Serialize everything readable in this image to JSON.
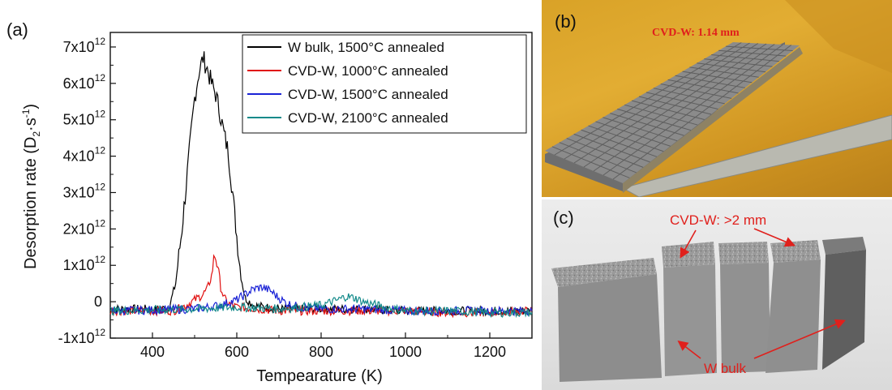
{
  "chart_data": {
    "type": "line",
    "panel_label": "(a)",
    "xlabel": "Tempearature (K)",
    "ylabel": "Desorption rate (D",
    "ylabel_sub": "2",
    "ylabel_unit": "·s",
    "ylabel_sup": "-1",
    "ylabel_close": ")",
    "xlim": [
      300,
      1300
    ],
    "ylim": [
      -1.0,
      7.4
    ],
    "y_scale": "×10^12",
    "x_ticks": [
      400,
      600,
      800,
      1000,
      1200
    ],
    "y_ticks": [
      {
        "value": -1,
        "mantissa": "-1x10",
        "exp": "12"
      },
      {
        "value": 0,
        "mantissa": "0",
        "exp": ""
      },
      {
        "value": 1,
        "mantissa": "1x10",
        "exp": "12"
      },
      {
        "value": 2,
        "mantissa": "2x10",
        "exp": "12"
      },
      {
        "value": 3,
        "mantissa": "3x10",
        "exp": "12"
      },
      {
        "value": 4,
        "mantissa": "4x10",
        "exp": "12"
      },
      {
        "value": 5,
        "mantissa": "5x10",
        "exp": "12"
      },
      {
        "value": 6,
        "mantissa": "6x10",
        "exp": "12"
      },
      {
        "value": 7,
        "mantissa": "7x10",
        "exp": "12"
      }
    ],
    "legend_position": "top-right",
    "grid": false,
    "series": [
      {
        "name": "W bulk, 1500°C annealed",
        "color": "#000000",
        "x": [
          300,
          420,
          440,
          455,
          470,
          485,
          500,
          510,
          520,
          530,
          540,
          550,
          560,
          570,
          580,
          590,
          600,
          610,
          620,
          640,
          700,
          800,
          900,
          1000,
          1100,
          1200,
          1300
        ],
        "y": [
          -0.2,
          -0.2,
          -0.15,
          0.5,
          2.0,
          3.8,
          5.6,
          6.3,
          6.7,
          6.4,
          6.0,
          5.7,
          5.2,
          4.6,
          4.1,
          3.0,
          1.8,
          0.7,
          0.1,
          -0.1,
          -0.2,
          -0.2,
          -0.2,
          -0.25,
          -0.25,
          -0.25,
          -0.25
        ]
      },
      {
        "name": "CVD-W, 1000°C annealed",
        "color": "#e01010",
        "x": [
          300,
          450,
          480,
          500,
          520,
          530,
          540,
          548,
          555,
          562,
          570,
          580,
          600,
          650,
          700,
          800,
          900,
          1000,
          1100,
          1200,
          1300
        ],
        "y": [
          -0.25,
          -0.25,
          -0.1,
          0.05,
          0.2,
          0.35,
          0.7,
          1.3,
          1.0,
          0.4,
          0.1,
          -0.05,
          -0.15,
          -0.2,
          -0.25,
          -0.25,
          -0.25,
          -0.25,
          -0.3,
          -0.3,
          -0.25
        ]
      },
      {
        "name": "CVD-W, 1500°C annealed",
        "color": "#1a22d6",
        "x": [
          300,
          500,
          560,
          600,
          620,
          640,
          660,
          680,
          700,
          720,
          750,
          800,
          900,
          1000,
          1100,
          1200,
          1300
        ],
        "y": [
          -0.25,
          -0.2,
          -0.1,
          0.05,
          0.2,
          0.35,
          0.4,
          0.3,
          0.1,
          -0.05,
          -0.15,
          -0.2,
          -0.2,
          -0.25,
          -0.25,
          -0.25,
          -0.25
        ]
      },
      {
        "name": "CVD-W, 2100°C annealed",
        "color": "#138a8a",
        "x": [
          300,
          500,
          600,
          700,
          800,
          840,
          860,
          880,
          900,
          950,
          1000,
          1100,
          1200,
          1300
        ],
        "y": [
          -0.25,
          -0.2,
          -0.15,
          -0.2,
          -0.1,
          0.05,
          0.15,
          0.1,
          0.0,
          -0.15,
          -0.25,
          -0.25,
          -0.3,
          -0.3
        ]
      }
    ]
  },
  "photo_b": {
    "panel_label": "(b)",
    "annotation": "CVD-W: 1.14 mm",
    "colors": {
      "background": "#dba42a",
      "tile": "#8b8b8b",
      "ruler": "#b9b9b0"
    }
  },
  "photo_c": {
    "panel_label": "(c)",
    "annotation_top": "CVD-W: >2 mm",
    "annotation_bottom": "W bulk",
    "arrow_color": "#e0201c"
  }
}
